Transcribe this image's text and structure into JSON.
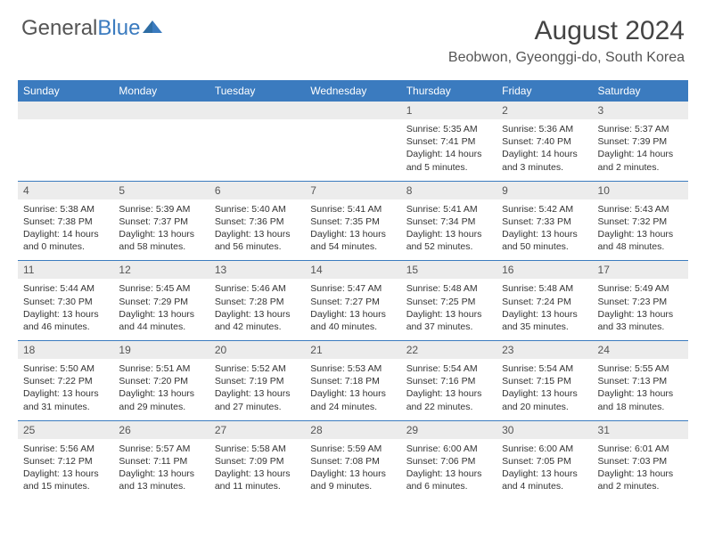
{
  "logo": {
    "text1": "General",
    "text2": "Blue"
  },
  "title": "August 2024",
  "location": "Beobwon, Gyeonggi-do, South Korea",
  "colors": {
    "header_bg": "#3b7bbf",
    "header_text": "#ffffff",
    "daynum_bg": "#ececec",
    "text": "#333333",
    "title": "#444444"
  },
  "dayNames": [
    "Sunday",
    "Monday",
    "Tuesday",
    "Wednesday",
    "Thursday",
    "Friday",
    "Saturday"
  ],
  "weeks": [
    [
      null,
      null,
      null,
      null,
      {
        "n": "1",
        "sr": "5:35 AM",
        "ss": "7:41 PM",
        "dl": "14 hours and 5 minutes."
      },
      {
        "n": "2",
        "sr": "5:36 AM",
        "ss": "7:40 PM",
        "dl": "14 hours and 3 minutes."
      },
      {
        "n": "3",
        "sr": "5:37 AM",
        "ss": "7:39 PM",
        "dl": "14 hours and 2 minutes."
      }
    ],
    [
      {
        "n": "4",
        "sr": "5:38 AM",
        "ss": "7:38 PM",
        "dl": "14 hours and 0 minutes."
      },
      {
        "n": "5",
        "sr": "5:39 AM",
        "ss": "7:37 PM",
        "dl": "13 hours and 58 minutes."
      },
      {
        "n": "6",
        "sr": "5:40 AM",
        "ss": "7:36 PM",
        "dl": "13 hours and 56 minutes."
      },
      {
        "n": "7",
        "sr": "5:41 AM",
        "ss": "7:35 PM",
        "dl": "13 hours and 54 minutes."
      },
      {
        "n": "8",
        "sr": "5:41 AM",
        "ss": "7:34 PM",
        "dl": "13 hours and 52 minutes."
      },
      {
        "n": "9",
        "sr": "5:42 AM",
        "ss": "7:33 PM",
        "dl": "13 hours and 50 minutes."
      },
      {
        "n": "10",
        "sr": "5:43 AM",
        "ss": "7:32 PM",
        "dl": "13 hours and 48 minutes."
      }
    ],
    [
      {
        "n": "11",
        "sr": "5:44 AM",
        "ss": "7:30 PM",
        "dl": "13 hours and 46 minutes."
      },
      {
        "n": "12",
        "sr": "5:45 AM",
        "ss": "7:29 PM",
        "dl": "13 hours and 44 minutes."
      },
      {
        "n": "13",
        "sr": "5:46 AM",
        "ss": "7:28 PM",
        "dl": "13 hours and 42 minutes."
      },
      {
        "n": "14",
        "sr": "5:47 AM",
        "ss": "7:27 PM",
        "dl": "13 hours and 40 minutes."
      },
      {
        "n": "15",
        "sr": "5:48 AM",
        "ss": "7:25 PM",
        "dl": "13 hours and 37 minutes."
      },
      {
        "n": "16",
        "sr": "5:48 AM",
        "ss": "7:24 PM",
        "dl": "13 hours and 35 minutes."
      },
      {
        "n": "17",
        "sr": "5:49 AM",
        "ss": "7:23 PM",
        "dl": "13 hours and 33 minutes."
      }
    ],
    [
      {
        "n": "18",
        "sr": "5:50 AM",
        "ss": "7:22 PM",
        "dl": "13 hours and 31 minutes."
      },
      {
        "n": "19",
        "sr": "5:51 AM",
        "ss": "7:20 PM",
        "dl": "13 hours and 29 minutes."
      },
      {
        "n": "20",
        "sr": "5:52 AM",
        "ss": "7:19 PM",
        "dl": "13 hours and 27 minutes."
      },
      {
        "n": "21",
        "sr": "5:53 AM",
        "ss": "7:18 PM",
        "dl": "13 hours and 24 minutes."
      },
      {
        "n": "22",
        "sr": "5:54 AM",
        "ss": "7:16 PM",
        "dl": "13 hours and 22 minutes."
      },
      {
        "n": "23",
        "sr": "5:54 AM",
        "ss": "7:15 PM",
        "dl": "13 hours and 20 minutes."
      },
      {
        "n": "24",
        "sr": "5:55 AM",
        "ss": "7:13 PM",
        "dl": "13 hours and 18 minutes."
      }
    ],
    [
      {
        "n": "25",
        "sr": "5:56 AM",
        "ss": "7:12 PM",
        "dl": "13 hours and 15 minutes."
      },
      {
        "n": "26",
        "sr": "5:57 AM",
        "ss": "7:11 PM",
        "dl": "13 hours and 13 minutes."
      },
      {
        "n": "27",
        "sr": "5:58 AM",
        "ss": "7:09 PM",
        "dl": "13 hours and 11 minutes."
      },
      {
        "n": "28",
        "sr": "5:59 AM",
        "ss": "7:08 PM",
        "dl": "13 hours and 9 minutes."
      },
      {
        "n": "29",
        "sr": "6:00 AM",
        "ss": "7:06 PM",
        "dl": "13 hours and 6 minutes."
      },
      {
        "n": "30",
        "sr": "6:00 AM",
        "ss": "7:05 PM",
        "dl": "13 hours and 4 minutes."
      },
      {
        "n": "31",
        "sr": "6:01 AM",
        "ss": "7:03 PM",
        "dl": "13 hours and 2 minutes."
      }
    ]
  ],
  "labels": {
    "sunrise": "Sunrise:",
    "sunset": "Sunset:",
    "daylight": "Daylight:"
  }
}
